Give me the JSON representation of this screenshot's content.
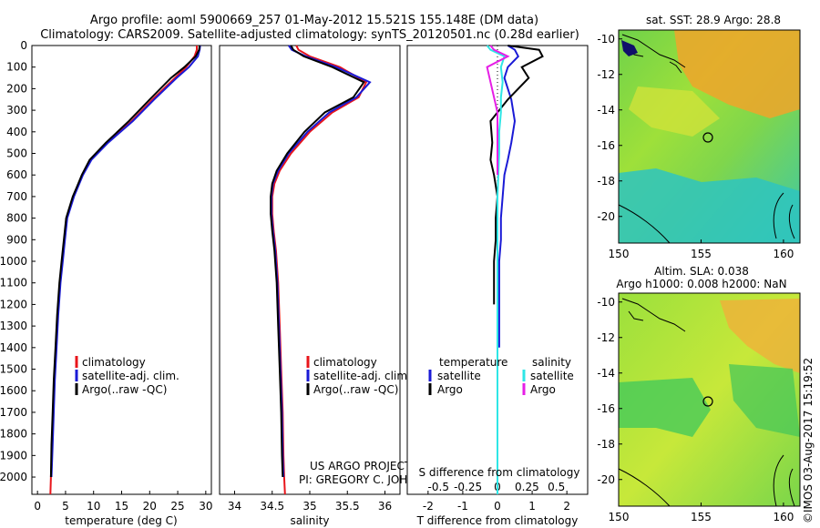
{
  "header": {
    "line1": "Argo profile: aoml 5900669_257 01-May-2012 15.521S 155.148E (DM data)",
    "line2": "Climatology: CARS2009. Satellite-adjusted climatology: synTS_20120501.nc (0.28d earlier)"
  },
  "credits": {
    "project": "US ARGO PROJECT",
    "pi": "PI: GREGORY C. JOHNSON"
  },
  "stamp": "©IMOS 03-Aug-2017 15:19:52",
  "colors": {
    "climatology": "#e8151b",
    "satellite": "#1a1ad6",
    "argo": "#000000",
    "sal_satellite": "#2ee6e6",
    "sal_argo": "#e61ee6"
  },
  "chart_data": [
    {
      "type": "line",
      "id": "temperature",
      "xlabel": "temperature (deg C)",
      "ylabel": "",
      "xlim": [
        -1,
        31
      ],
      "ylim": [
        2080,
        0
      ],
      "x_ticks": [
        0,
        5,
        10,
        15,
        20,
        25,
        30
      ],
      "y_ticks": [
        0,
        100,
        200,
        300,
        400,
        500,
        600,
        700,
        800,
        900,
        1000,
        1100,
        1200,
        1300,
        1400,
        1500,
        1600,
        1700,
        1800,
        1900,
        2000
      ],
      "legend": [
        "climatology",
        "satellite-adj. clim.",
        "Argo(..raw -QC)"
      ],
      "series": [
        {
          "name": "climatology",
          "color_key": "climatology",
          "x": [
            28.4,
            28.4,
            28.0,
            26.5,
            24.5,
            20.5,
            16.8,
            12.5,
            9.5,
            8.0,
            7.2,
            6.4,
            5.8,
            5.2,
            4.8,
            4.4,
            4.0,
            3.6,
            3.3,
            3.0,
            2.8,
            2.6,
            2.4,
            2.3
          ],
          "y": [
            0,
            20,
            50,
            100,
            150,
            250,
            350,
            450,
            530,
            600,
            650,
            700,
            750,
            800,
            900,
            1000,
            1100,
            1250,
            1400,
            1550,
            1700,
            1850,
            2000,
            2080
          ]
        },
        {
          "name": "satellite-adj. clim.",
          "color_key": "satellite",
          "x": [
            29.0,
            28.9,
            28.6,
            27.0,
            24.8,
            20.8,
            17.0,
            12.6,
            9.6,
            8.1,
            7.3,
            6.5,
            5.9,
            5.3,
            4.9,
            4.5,
            4.1,
            3.7,
            3.4,
            3.1,
            2.9,
            2.7,
            2.5
          ],
          "y": [
            0,
            20,
            50,
            100,
            150,
            250,
            350,
            450,
            530,
            600,
            650,
            700,
            750,
            800,
            900,
            1000,
            1100,
            1250,
            1400,
            1550,
            1700,
            1850,
            2000
          ]
        },
        {
          "name": "Argo(..raw -QC)",
          "color_key": "argo",
          "x": [
            28.9,
            28.8,
            28.2,
            26.2,
            23.8,
            20.0,
            16.3,
            12.2,
            9.3,
            7.9,
            7.1,
            6.3,
            5.7,
            5.1,
            4.7,
            4.3,
            3.9,
            3.5,
            3.2,
            2.9,
            2.7,
            2.5,
            2.4
          ],
          "y": [
            0,
            20,
            50,
            100,
            150,
            250,
            350,
            450,
            530,
            600,
            650,
            700,
            750,
            800,
            900,
            1000,
            1100,
            1250,
            1400,
            1550,
            1700,
            1850,
            2000
          ]
        }
      ]
    },
    {
      "type": "line",
      "id": "salinity",
      "xlabel": "salinity",
      "xlim": [
        33.8,
        36.2
      ],
      "ylim": [
        2080,
        0
      ],
      "x_ticks": [
        34,
        34.5,
        35,
        35.5,
        36
      ],
      "legend": [
        "climatology",
        "satellite-adj. clim.",
        "Argo(..raw -QC)"
      ],
      "series": [
        {
          "name": "climatology",
          "color_key": "climatology",
          "x": [
            34.82,
            34.85,
            35.0,
            35.4,
            35.75,
            35.65,
            35.3,
            35.0,
            34.75,
            34.6,
            34.53,
            34.5,
            34.5,
            34.52,
            34.55,
            34.58,
            34.6,
            34.62,
            34.64,
            34.65,
            34.66,
            34.67
          ],
          "y": [
            0,
            20,
            50,
            100,
            170,
            240,
            310,
            400,
            500,
            580,
            640,
            700,
            780,
            860,
            950,
            1100,
            1300,
            1500,
            1700,
            1900,
            2000,
            2080
          ]
        },
        {
          "name": "satellite-adj. clim.",
          "color_key": "satellite",
          "x": [
            34.72,
            34.76,
            34.95,
            35.35,
            35.8,
            35.62,
            35.26,
            34.97,
            34.72,
            34.58,
            34.51,
            34.49,
            34.49,
            34.51,
            34.54,
            34.57,
            34.59,
            34.61,
            34.63,
            34.64,
            34.65
          ],
          "y": [
            0,
            20,
            50,
            100,
            170,
            240,
            310,
            400,
            500,
            580,
            640,
            700,
            780,
            860,
            950,
            1100,
            1300,
            1500,
            1700,
            1900,
            2000
          ]
        },
        {
          "name": "Argo(..raw -QC)",
          "color_key": "argo",
          "x": [
            34.75,
            34.78,
            34.92,
            35.3,
            35.72,
            35.58,
            35.2,
            34.93,
            34.7,
            34.56,
            34.5,
            34.48,
            34.48,
            34.5,
            34.53,
            34.56,
            34.58,
            34.6,
            34.62,
            34.63,
            34.64
          ],
          "y": [
            0,
            20,
            50,
            100,
            170,
            240,
            310,
            400,
            500,
            580,
            640,
            700,
            780,
            860,
            950,
            1100,
            1300,
            1500,
            1700,
            1900,
            2000
          ]
        }
      ]
    },
    {
      "type": "line",
      "id": "difference",
      "xlabel": "T difference from climatology",
      "xlabel2": "S difference from climatology",
      "xlim": [
        -2.6,
        2.6
      ],
      "ylim": [
        2080,
        0
      ],
      "t_ticks": [
        -2,
        -1,
        0,
        1,
        2
      ],
      "s_ticks": [
        "-0.5",
        "-0.25",
        "0",
        "0.25",
        "0.5"
      ],
      "s_tick_positions": [
        -1.7,
        -0.85,
        0,
        0.85,
        1.7
      ],
      "legend_temperature": {
        "title": "temperature",
        "items": [
          "satellite",
          "Argo"
        ]
      },
      "legend_salinity": {
        "title": "salinity",
        "items": [
          "satellite",
          "Argo"
        ]
      },
      "series": [
        {
          "name": "T satellite",
          "color_key": "satellite",
          "x": [
            0.3,
            0.5,
            0.6,
            0.3,
            0.2,
            0.4,
            0.5,
            0.4,
            0.3,
            0.2,
            0.15,
            0.1,
            0.1,
            0.05,
            0.05,
            0.05,
            0.05
          ],
          "y": [
            0,
            20,
            50,
            100,
            150,
            250,
            350,
            450,
            530,
            600,
            700,
            800,
            900,
            1000,
            1100,
            1250,
            1400
          ]
        },
        {
          "name": "T Argo",
          "color_key": "argo",
          "x": [
            0.3,
            1.2,
            1.3,
            0.7,
            0.9,
            0.3,
            -0.2,
            -0.15,
            -0.2,
            -0.1,
            0.0,
            -0.05,
            -0.05,
            -0.1,
            -0.1,
            -0.1
          ],
          "y": [
            0,
            20,
            50,
            100,
            150,
            250,
            350,
            450,
            530,
            600,
            700,
            800,
            900,
            1000,
            1100,
            1200
          ]
        },
        {
          "name": "S satellite",
          "color_key": "sal_satellite",
          "x": [
            -0.3,
            -0.2,
            0.2,
            0.1,
            0.15,
            0.1,
            0.1,
            0.05,
            0.05,
            0.0,
            0.0,
            0.0,
            0.0,
            0.0,
            0.0
          ],
          "y": [
            0,
            20,
            50,
            100,
            170,
            240,
            310,
            400,
            500,
            700,
            900,
            1100,
            1400,
            1800,
            2080
          ]
        },
        {
          "name": "S Argo",
          "color_key": "sal_argo",
          "x": [
            -0.2,
            -0.1,
            0.3,
            -0.3,
            -0.2,
            -0.1,
            0.0,
            0.0,
            0.0,
            0.0
          ],
          "y": [
            0,
            20,
            50,
            100,
            170,
            240,
            310,
            400,
            500,
            600
          ]
        }
      ]
    },
    {
      "type": "heatmap",
      "id": "sst_map",
      "title": "sat. SST: 28.9 Argo: 28.8",
      "xlim": [
        150,
        161
      ],
      "ylim": [
        -21.5,
        -9.5
      ],
      "x_ticks": [
        150,
        155,
        160
      ],
      "y_ticks": [
        -10,
        -12,
        -14,
        -16,
        -18,
        -20
      ],
      "marker": {
        "lon": 155.148,
        "lat": -15.521
      }
    },
    {
      "type": "heatmap",
      "id": "sla_map",
      "title": "Altim. SLA: 0.038",
      "subtitle": "Argo h1000: 0.008 h2000: NaN",
      "xlim": [
        150,
        161
      ],
      "ylim": [
        -21.5,
        -9.5
      ],
      "x_ticks": [
        150,
        155,
        160
      ],
      "y_ticks": [
        -10,
        -12,
        -14,
        -16,
        -18,
        -20
      ],
      "marker": {
        "lon": 155.148,
        "lat": -15.521
      }
    }
  ]
}
